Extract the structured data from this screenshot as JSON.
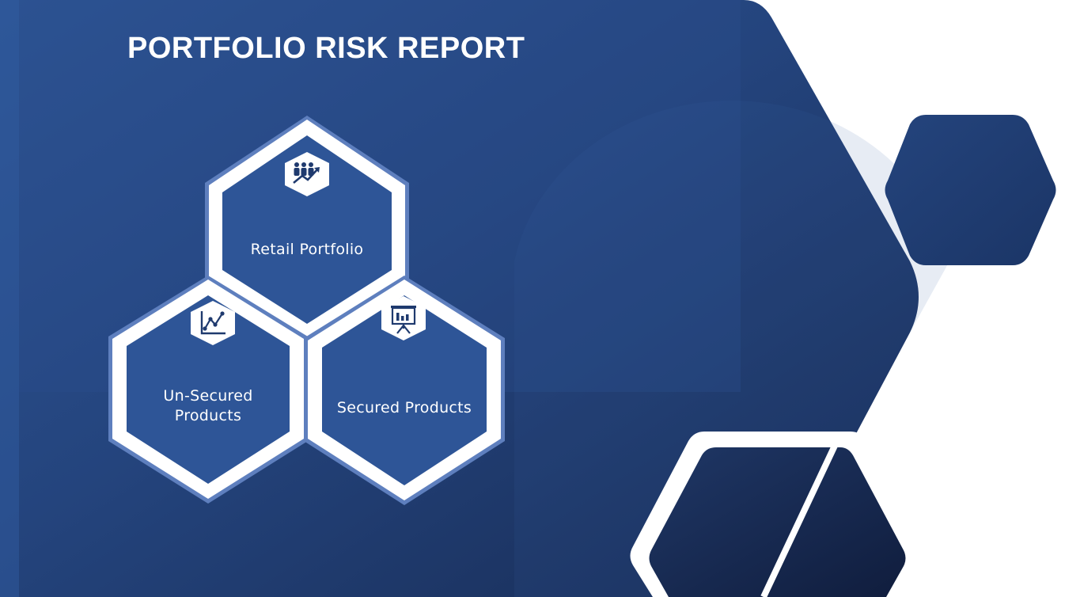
{
  "slide": {
    "title": "PORTFOLIO RISK REPORT",
    "colors": {
      "navy_dark": "#1b2d57",
      "navy_mid": "#2a4a85",
      "tile_blue": "#2e5597",
      "tile_border": "#ffffff",
      "background_right": "#ffffff"
    }
  },
  "tiles": {
    "retail": {
      "label": "Retail Portfolio",
      "icon": "people-growth-icon"
    },
    "unsecured": {
      "label_line1": "Un-Secured",
      "label_line2": "Products",
      "icon": "line-chart-icon"
    },
    "secured": {
      "label": "Secured Products",
      "icon": "presentation-board-icon"
    }
  }
}
